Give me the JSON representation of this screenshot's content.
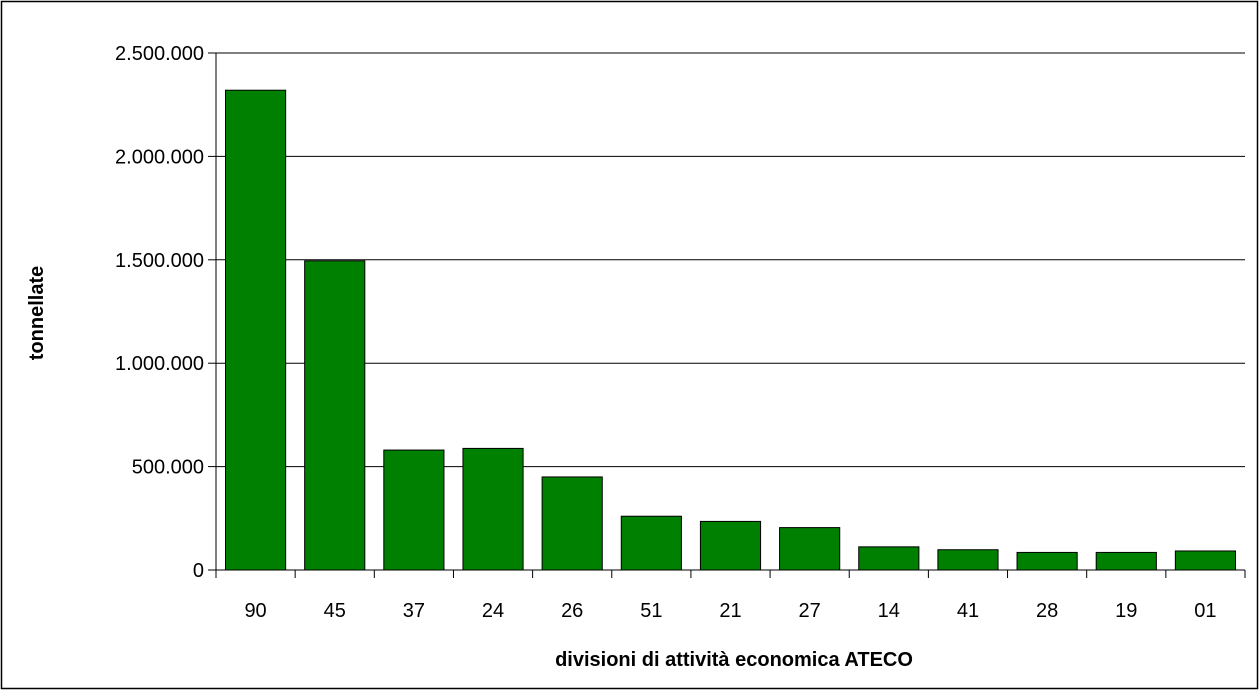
{
  "chart_data": {
    "type": "bar",
    "title": "",
    "xlabel": "divisioni di attività economica ATECO",
    "ylabel": "tonnellate",
    "categories": [
      "90",
      "45",
      "37",
      "24",
      "26",
      "51",
      "21",
      "27",
      "14",
      "41",
      "28",
      "19",
      "01"
    ],
    "values": [
      2320000,
      1495000,
      580000,
      588000,
      450000,
      260000,
      235000,
      205000,
      112000,
      98000,
      85000,
      85000,
      92000
    ],
    "ylim": [
      0,
      2500000
    ],
    "yticks": [
      0,
      500000,
      1000000,
      1500000,
      2000000,
      2500000
    ],
    "ytick_labels": [
      "0",
      "500.000",
      "1.000.000",
      "1.500.000",
      "2.000.000",
      "2.500.000"
    ],
    "grid": true,
    "legend": "none",
    "bar_color": "#008000"
  }
}
